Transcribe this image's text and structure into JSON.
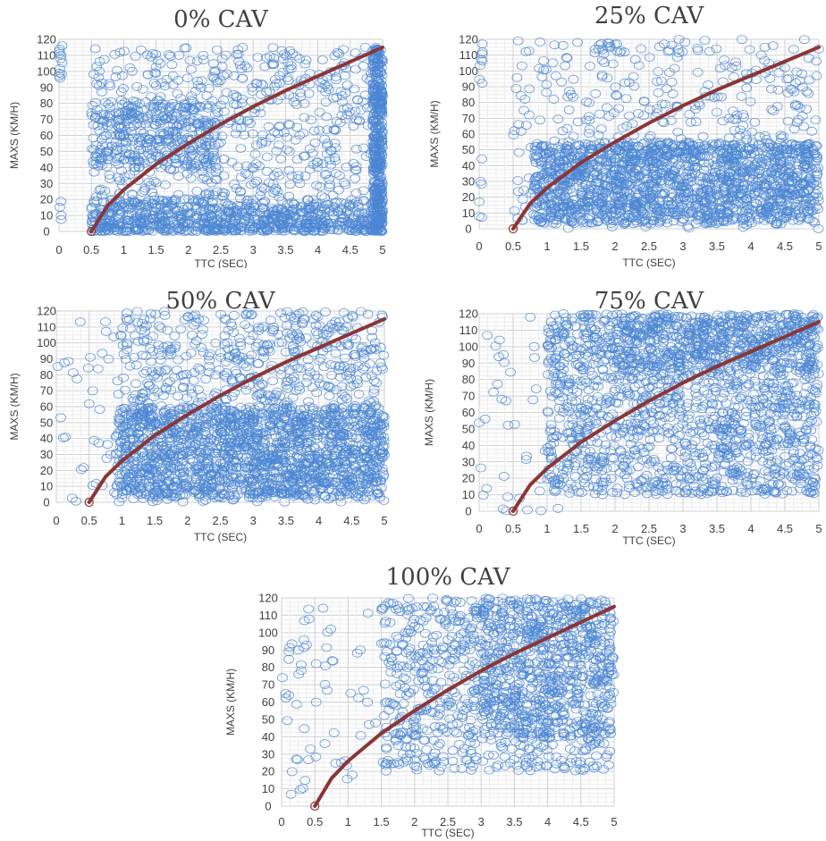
{
  "colors": {
    "scatter": "#4a86d4",
    "curve": "#8b3535",
    "grid": "#d9d9d9",
    "text": "#404040"
  },
  "chart_data": [
    {
      "type": "scatter",
      "title": "0% CAV",
      "xlabel": "TTC (SEC)",
      "ylabel": "MAXS (KM/H)",
      "xlim": [
        0,
        5
      ],
      "ylim": [
        0,
        120
      ],
      "xticks": [
        "0",
        "0.5",
        "1",
        "1.5",
        "2",
        "2.5",
        "3",
        "3.5",
        "4",
        "4.5",
        "5"
      ],
      "yticks": [
        "0",
        "10",
        "20",
        "30",
        "40",
        "50",
        "60",
        "70",
        "80",
        "90",
        "100",
        "110",
        "120"
      ],
      "grid": true,
      "curve": {
        "x": [
          0.5,
          0.75,
          1,
          1.5,
          2,
          2.5,
          3,
          3.5,
          4,
          4.5,
          5
        ],
        "y": [
          0,
          16,
          26,
          42,
          55,
          67,
          78,
          88,
          97,
          106,
          115
        ]
      },
      "series": [
        {
          "marker": "open-circle",
          "x_range": [
            0.5,
            5
          ],
          "y_range": [
            0,
            20
          ],
          "n": 700,
          "skew": 1.5
        },
        {
          "marker": "open-circle",
          "x_range": [
            0.5,
            2.5
          ],
          "y_range": [
            40,
            82
          ],
          "n": 300,
          "skew": 1
        },
        {
          "marker": "open-circle",
          "x_range": [
            0.5,
            5
          ],
          "y_range": [
            0,
            115
          ],
          "n": 700,
          "skew": 1
        },
        {
          "marker": "open-circle",
          "x_range": [
            4.85,
            5
          ],
          "y_range": [
            0,
            115
          ],
          "n": 400,
          "skew": 1
        },
        {
          "marker": "open-circle",
          "x_range": [
            0,
            0.05
          ],
          "y_range": [
            95,
            118
          ],
          "n": 12,
          "skew": 1
        },
        {
          "marker": "open-circle",
          "x_range": [
            0,
            0.05
          ],
          "y_range": [
            5,
            20
          ],
          "n": 4,
          "skew": 1
        }
      ]
    },
    {
      "type": "scatter",
      "title": "25% CAV",
      "xlabel": "TTC (SEC)",
      "ylabel": "MAXS (KM/H)",
      "xlim": [
        0,
        5
      ],
      "ylim": [
        0,
        120
      ],
      "xticks": [
        "0",
        "0.5",
        "1",
        "1.5",
        "2",
        "2.5",
        "3",
        "3.5",
        "4",
        "4.5",
        "5"
      ],
      "yticks": [
        "0",
        "10",
        "20",
        "30",
        "40",
        "50",
        "60",
        "70",
        "80",
        "90",
        "100",
        "110",
        "120"
      ],
      "grid": true,
      "curve": {
        "x": [
          0.5,
          0.75,
          1,
          1.5,
          2,
          2.5,
          3,
          3.5,
          4,
          4.5,
          5
        ],
        "y": [
          0,
          16,
          26,
          42,
          55,
          67,
          78,
          88,
          97,
          106,
          115
        ]
      },
      "series": [
        {
          "marker": "open-circle",
          "x_range": [
            0.8,
            5
          ],
          "y_range": [
            3,
            55
          ],
          "n": 1500,
          "skew": 1
        },
        {
          "marker": "open-circle",
          "x_range": [
            0.5,
            5
          ],
          "y_range": [
            0,
            120
          ],
          "n": 500,
          "skew": 1
        },
        {
          "marker": "open-circle",
          "x_range": [
            0,
            0.05
          ],
          "y_range": [
            90,
            118
          ],
          "n": 8,
          "skew": 1
        },
        {
          "marker": "open-circle",
          "x_range": [
            0,
            0.05
          ],
          "y_range": [
            0,
            47
          ],
          "n": 6,
          "skew": 1
        }
      ]
    },
    {
      "type": "scatter",
      "title": "50% CAV",
      "xlabel": "TTC (SEC)",
      "ylabel": "MAXS (KM/H)",
      "xlim": [
        0,
        5
      ],
      "ylim": [
        0,
        120
      ],
      "xticks": [
        "0",
        "0.5",
        "1",
        "1.5",
        "2",
        "2.5",
        "3",
        "3.5",
        "4",
        "4.5",
        "5"
      ],
      "yticks": [
        "0",
        "10",
        "20",
        "30",
        "40",
        "50",
        "60",
        "70",
        "80",
        "90",
        "100",
        "110",
        "120"
      ],
      "grid": true,
      "curve": {
        "x": [
          0.5,
          0.75,
          1,
          1.5,
          2,
          2.5,
          3,
          3.5,
          4,
          4.5,
          5
        ],
        "y": [
          0,
          16,
          26,
          42,
          55,
          67,
          78,
          88,
          97,
          106,
          115
        ]
      },
      "series": [
        {
          "marker": "open-circle",
          "x_range": [
            0.9,
            5
          ],
          "y_range": [
            3,
            60
          ],
          "n": 1300,
          "skew": 1
        },
        {
          "marker": "open-circle",
          "x_range": [
            1,
            5
          ],
          "y_range": [
            0,
            120
          ],
          "n": 900,
          "skew": 1
        },
        {
          "marker": "open-circle",
          "x_range": [
            0,
            1
          ],
          "y_range": [
            0,
            118
          ],
          "n": 40,
          "skew": 1
        }
      ]
    },
    {
      "type": "scatter",
      "title": "75% CAV",
      "xlabel": "TTC (SEC)",
      "ylabel": "MAXS (KM/H)",
      "xlim": [
        0,
        5
      ],
      "ylim": [
        0,
        120
      ],
      "xticks": [
        "0",
        "0.5",
        "1",
        "1.5",
        "2",
        "2.5",
        "3",
        "3.5",
        "4",
        "4.5",
        "5"
      ],
      "yticks": [
        "0",
        "10",
        "20",
        "30",
        "40",
        "50",
        "60",
        "70",
        "80",
        "90",
        "100",
        "110",
        "120"
      ],
      "grid": true,
      "curve": {
        "x": [
          0.5,
          0.75,
          1,
          1.5,
          2,
          2.5,
          3,
          3.5,
          4,
          4.5,
          5
        ],
        "y": [
          0,
          16,
          26,
          42,
          55,
          67,
          78,
          88,
          97,
          106,
          115
        ]
      },
      "series": [
        {
          "marker": "open-circle",
          "x_range": [
            1,
            5
          ],
          "y_range": [
            10,
            120
          ],
          "n": 1500,
          "skew": 1
        },
        {
          "marker": "open-circle",
          "x_range": [
            2,
            5
          ],
          "y_range": [
            85,
            120
          ],
          "n": 400,
          "skew": 1
        },
        {
          "marker": "open-circle",
          "x_range": [
            0,
            1.2
          ],
          "y_range": [
            0,
            118
          ],
          "n": 45,
          "skew": 1
        }
      ]
    },
    {
      "type": "scatter",
      "title": "100% CAV",
      "xlabel": "TTC (SEC)",
      "ylabel": "MAXS (KM/H)",
      "xlim": [
        0,
        5
      ],
      "ylim": [
        0,
        120
      ],
      "xticks": [
        "0",
        "0.5",
        "1",
        "1.5",
        "2",
        "2.5",
        "3",
        "3.5",
        "4",
        "4.5",
        "5"
      ],
      "yticks": [
        "0",
        "10",
        "20",
        "30",
        "40",
        "50",
        "60",
        "70",
        "80",
        "90",
        "100",
        "110",
        "120"
      ],
      "grid": true,
      "curve": {
        "x": [
          0.5,
          0.75,
          1,
          1.5,
          2,
          2.5,
          3,
          3.5,
          4,
          4.5,
          5
        ],
        "y": [
          0,
          16,
          26,
          42,
          55,
          67,
          78,
          88,
          97,
          106,
          115
        ]
      },
      "series": [
        {
          "marker": "open-circle",
          "x_range": [
            1.5,
            5
          ],
          "y_range": [
            20,
            120
          ],
          "n": 900,
          "skew": 1
        },
        {
          "marker": "open-circle",
          "x_range": [
            3,
            5
          ],
          "y_range": [
            40,
            120
          ],
          "n": 400,
          "skew": 1
        },
        {
          "marker": "open-circle",
          "x_range": [
            0,
            1.5
          ],
          "y_range": [
            5,
            118
          ],
          "n": 60,
          "skew": 1
        }
      ]
    }
  ]
}
